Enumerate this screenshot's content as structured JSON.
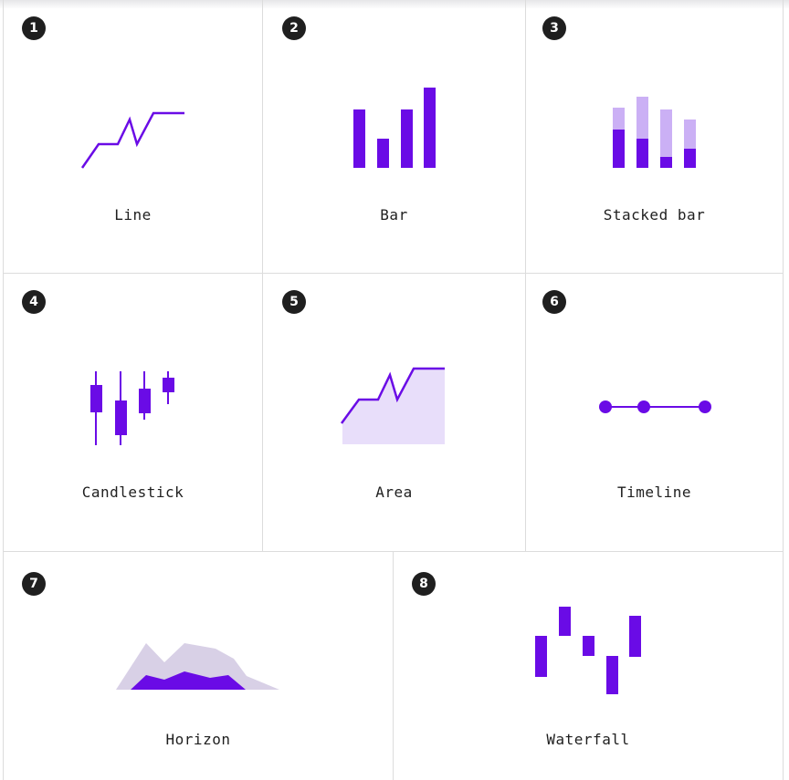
{
  "colors": {
    "accent": "#6a0be6",
    "accent_light": "#cbb0f5",
    "area_fill": "#e8defa",
    "horizon_back": "#d8d0e6",
    "badge": "#1f1f1f"
  },
  "cards": [
    {
      "number": "1",
      "label": "Line",
      "icon": "line-chart-icon"
    },
    {
      "number": "2",
      "label": "Bar",
      "icon": "bar-chart-icon"
    },
    {
      "number": "3",
      "label": "Stacked bar",
      "icon": "stacked-bar-chart-icon"
    },
    {
      "number": "4",
      "label": "Candlestick",
      "icon": "candlestick-chart-icon"
    },
    {
      "number": "5",
      "label": "Area",
      "icon": "area-chart-icon"
    },
    {
      "number": "6",
      "label": "Timeline",
      "icon": "timeline-chart-icon"
    },
    {
      "number": "7",
      "label": "Horizon",
      "icon": "horizon-chart-icon"
    },
    {
      "number": "8",
      "label": "Waterfall",
      "icon": "waterfall-chart-icon"
    }
  ]
}
